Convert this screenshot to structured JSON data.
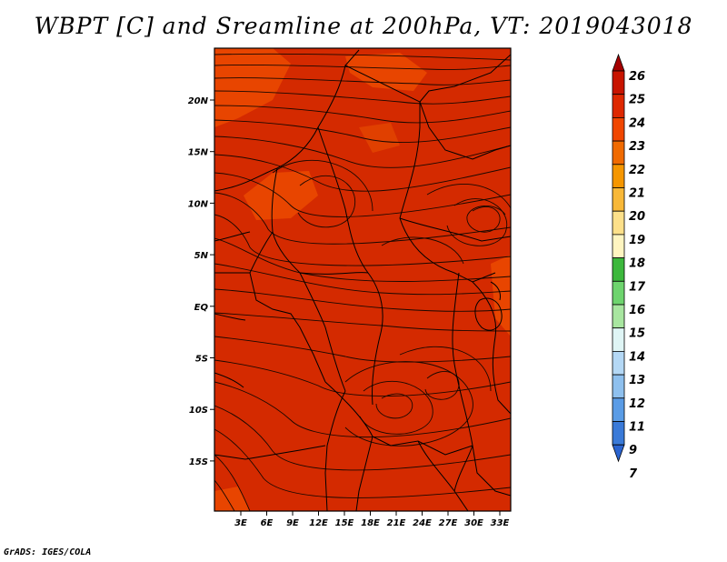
{
  "title": "WBPT [C] and Sreamline at 200hPa, VT: 2019043018",
  "credit": "GrADS: IGES/COLA",
  "lat_labels": [
    "20N",
    "15N",
    "10N",
    "5N",
    "EQ",
    "5S",
    "10S",
    "15S"
  ],
  "lon_labels": [
    "3E",
    "6E",
    "9E",
    "12E",
    "15E",
    "18E",
    "21E",
    "24E",
    "27E",
    "30E",
    "33E"
  ],
  "colorbar": {
    "labels": [
      "26",
      "25",
      "24",
      "23",
      "22",
      "21",
      "20",
      "19",
      "18",
      "17",
      "16",
      "15",
      "14",
      "13",
      "12",
      "11",
      "9",
      "7"
    ],
    "colors": [
      "#a50000",
      "#c81400",
      "#de2800",
      "#f04600",
      "#f06a00",
      "#f59600",
      "#f8b838",
      "#fde08a",
      "#fff5c0",
      "#3cb83c",
      "#6ed46e",
      "#a8e6a0",
      "#dff5f5",
      "#b4d8f5",
      "#8ec0ee",
      "#5a9ce6",
      "#3a7ad8",
      "#2a64d0"
    ]
  },
  "colors": {
    "field": "#d42a00",
    "warm_patch": "#e84500",
    "stream": "#1a0800",
    "border": "#000000"
  }
}
